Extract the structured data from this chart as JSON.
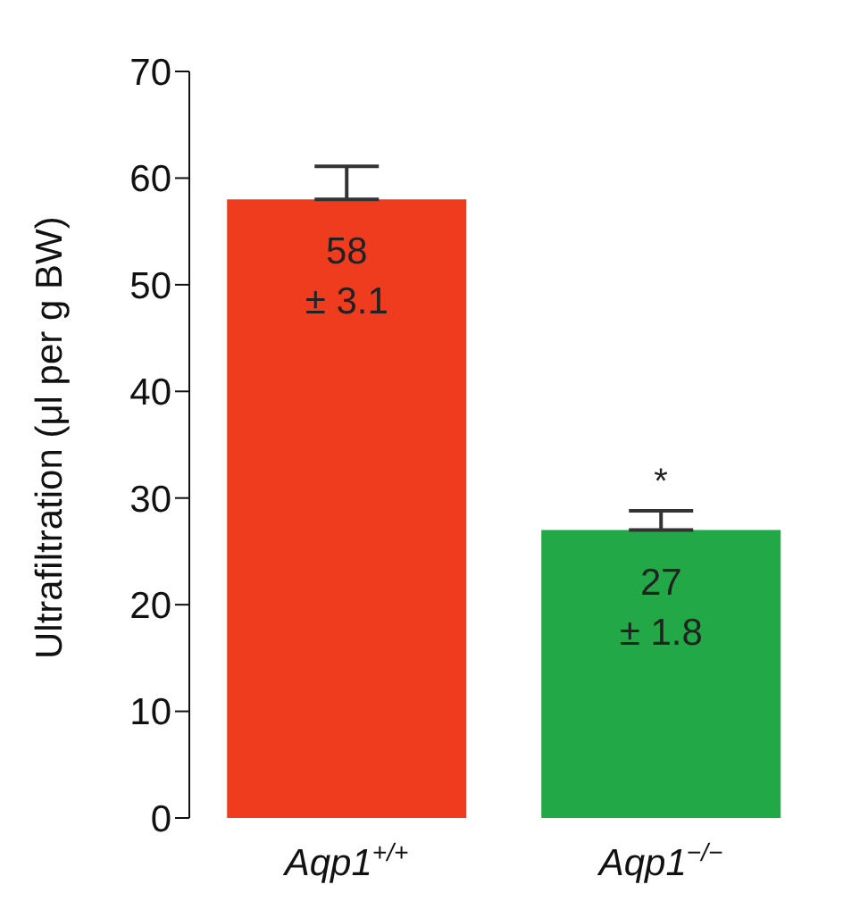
{
  "chart_data": {
    "type": "bar",
    "ylabel": "Ultrafiltration (μl per g BW)",
    "categories": [
      "Aqp1$^{+/+}$",
      "Aqp1$^{−/−}$"
    ],
    "values": [
      58,
      27
    ],
    "colors": [
      "#f03c1e",
      "#22a846"
    ],
    "errors": [
      3.1,
      1.8
    ],
    "value_labels": [
      "58\n± 3.1",
      "27\n± 1.8"
    ],
    "annotations": [
      "*"
    ],
    "ylim": [
      0,
      70
    ],
    "yticks": [
      0,
      10,
      20,
      30,
      40,
      50,
      60,
      70
    ]
  }
}
